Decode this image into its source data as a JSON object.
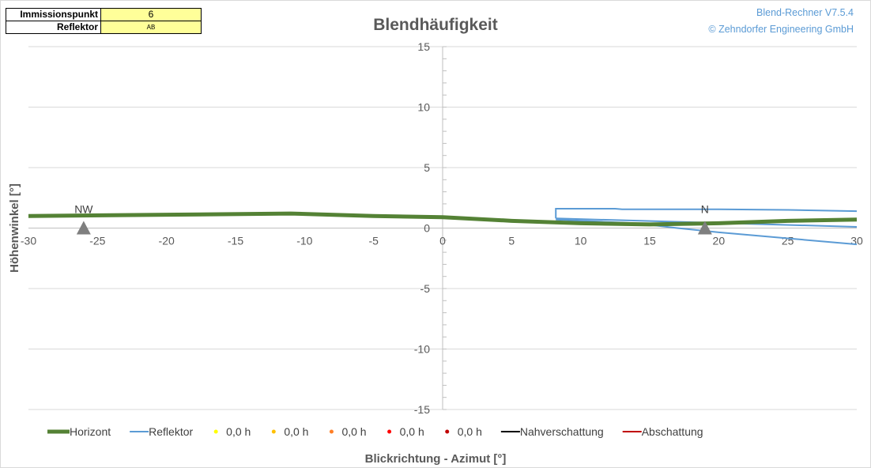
{
  "info": {
    "immission_label": "Immissionspunkt",
    "immission_value": "6",
    "reflector_label": "Reflektor",
    "reflector_value": "AB"
  },
  "brand": {
    "line1": "Blend-Rechner   V7.5.4",
    "line2": "© Zehndorfer Engineering GmbH",
    "color": "#5b9bd5"
  },
  "chart_data": {
    "type": "line",
    "title": "Blendhäufigkeit",
    "xlabel": "Blickrichtung - Azimut [°]",
    "ylabel": "Höhenwinkel [°]",
    "xlim": [
      -30,
      30
    ],
    "ylim": [
      -15,
      15
    ],
    "x_ticks": [
      -30,
      -25,
      -20,
      -15,
      -10,
      -5,
      0,
      5,
      10,
      15,
      20,
      25,
      30
    ],
    "x_tick_labels": [
      "-30",
      "-25",
      "-20",
      "-15",
      "-10",
      "-5",
      "0",
      "5",
      "10",
      "15",
      "20",
      "25",
      "30"
    ],
    "y_ticks": [
      -15,
      -10,
      -5,
      0,
      5,
      10,
      15
    ],
    "y_tick_labels": [
      "-15",
      "-10",
      "-5",
      "0",
      "5",
      "10",
      "15"
    ],
    "gridlines": "horizontal",
    "series": [
      {
        "name": "Horizont",
        "color": "#548235",
        "points": [
          [
            -30,
            1.0
          ],
          [
            -20,
            1.1
          ],
          [
            -11,
            1.2
          ],
          [
            -5,
            1.0
          ],
          [
            0,
            0.9
          ],
          [
            5,
            0.6
          ],
          [
            10,
            0.4
          ],
          [
            15,
            0.3
          ],
          [
            20,
            0.4
          ],
          [
            25,
            0.6
          ],
          [
            30,
            0.7
          ]
        ]
      },
      {
        "name": "Reflektor",
        "color": "#5b9bd5",
        "polylines": [
          [
            [
              8.2,
              0.8
            ],
            [
              8.2,
              1.6
            ],
            [
              12.5,
              1.6
            ],
            [
              13,
              1.55
            ],
            [
              20,
              1.55
            ],
            [
              25,
              1.5
            ],
            [
              30,
              1.4
            ]
          ],
          [
            [
              8.2,
              0.8
            ],
            [
              30,
              0.1
            ]
          ],
          [
            [
              8.2,
              0.7
            ],
            [
              14,
              0.4
            ],
            [
              17,
              0.0
            ],
            [
              20,
              -0.35
            ],
            [
              25,
              -0.85
            ],
            [
              30,
              -1.35
            ]
          ]
        ]
      }
    ],
    "markers": [
      {
        "label": "NW",
        "x": -26,
        "y": 0
      },
      {
        "label": "N",
        "x": 19,
        "y": 0
      }
    ],
    "marker_color": "#7f7f7f",
    "legend_position": "bottom",
    "legend": [
      {
        "label": "Horizont",
        "kind": "thick-line",
        "color": "#548235"
      },
      {
        "label": "Reflektor",
        "kind": "line",
        "color": "#5b9bd5"
      },
      {
        "label": "0,0 h",
        "kind": "dot",
        "color": "#ffff00"
      },
      {
        "label": "0,0 h",
        "kind": "dot",
        "color": "#ffc000"
      },
      {
        "label": "0,0 h",
        "kind": "dot",
        "color": "#ff7f27"
      },
      {
        "label": "0,0 h",
        "kind": "dot",
        "color": "#ff0000"
      },
      {
        "label": "0,0 h",
        "kind": "dot",
        "color": "#c00000"
      },
      {
        "label": "Nahverschattung",
        "kind": "line",
        "color": "#000000"
      },
      {
        "label": "Abschattung",
        "kind": "line",
        "color": "#c00000"
      }
    ]
  }
}
